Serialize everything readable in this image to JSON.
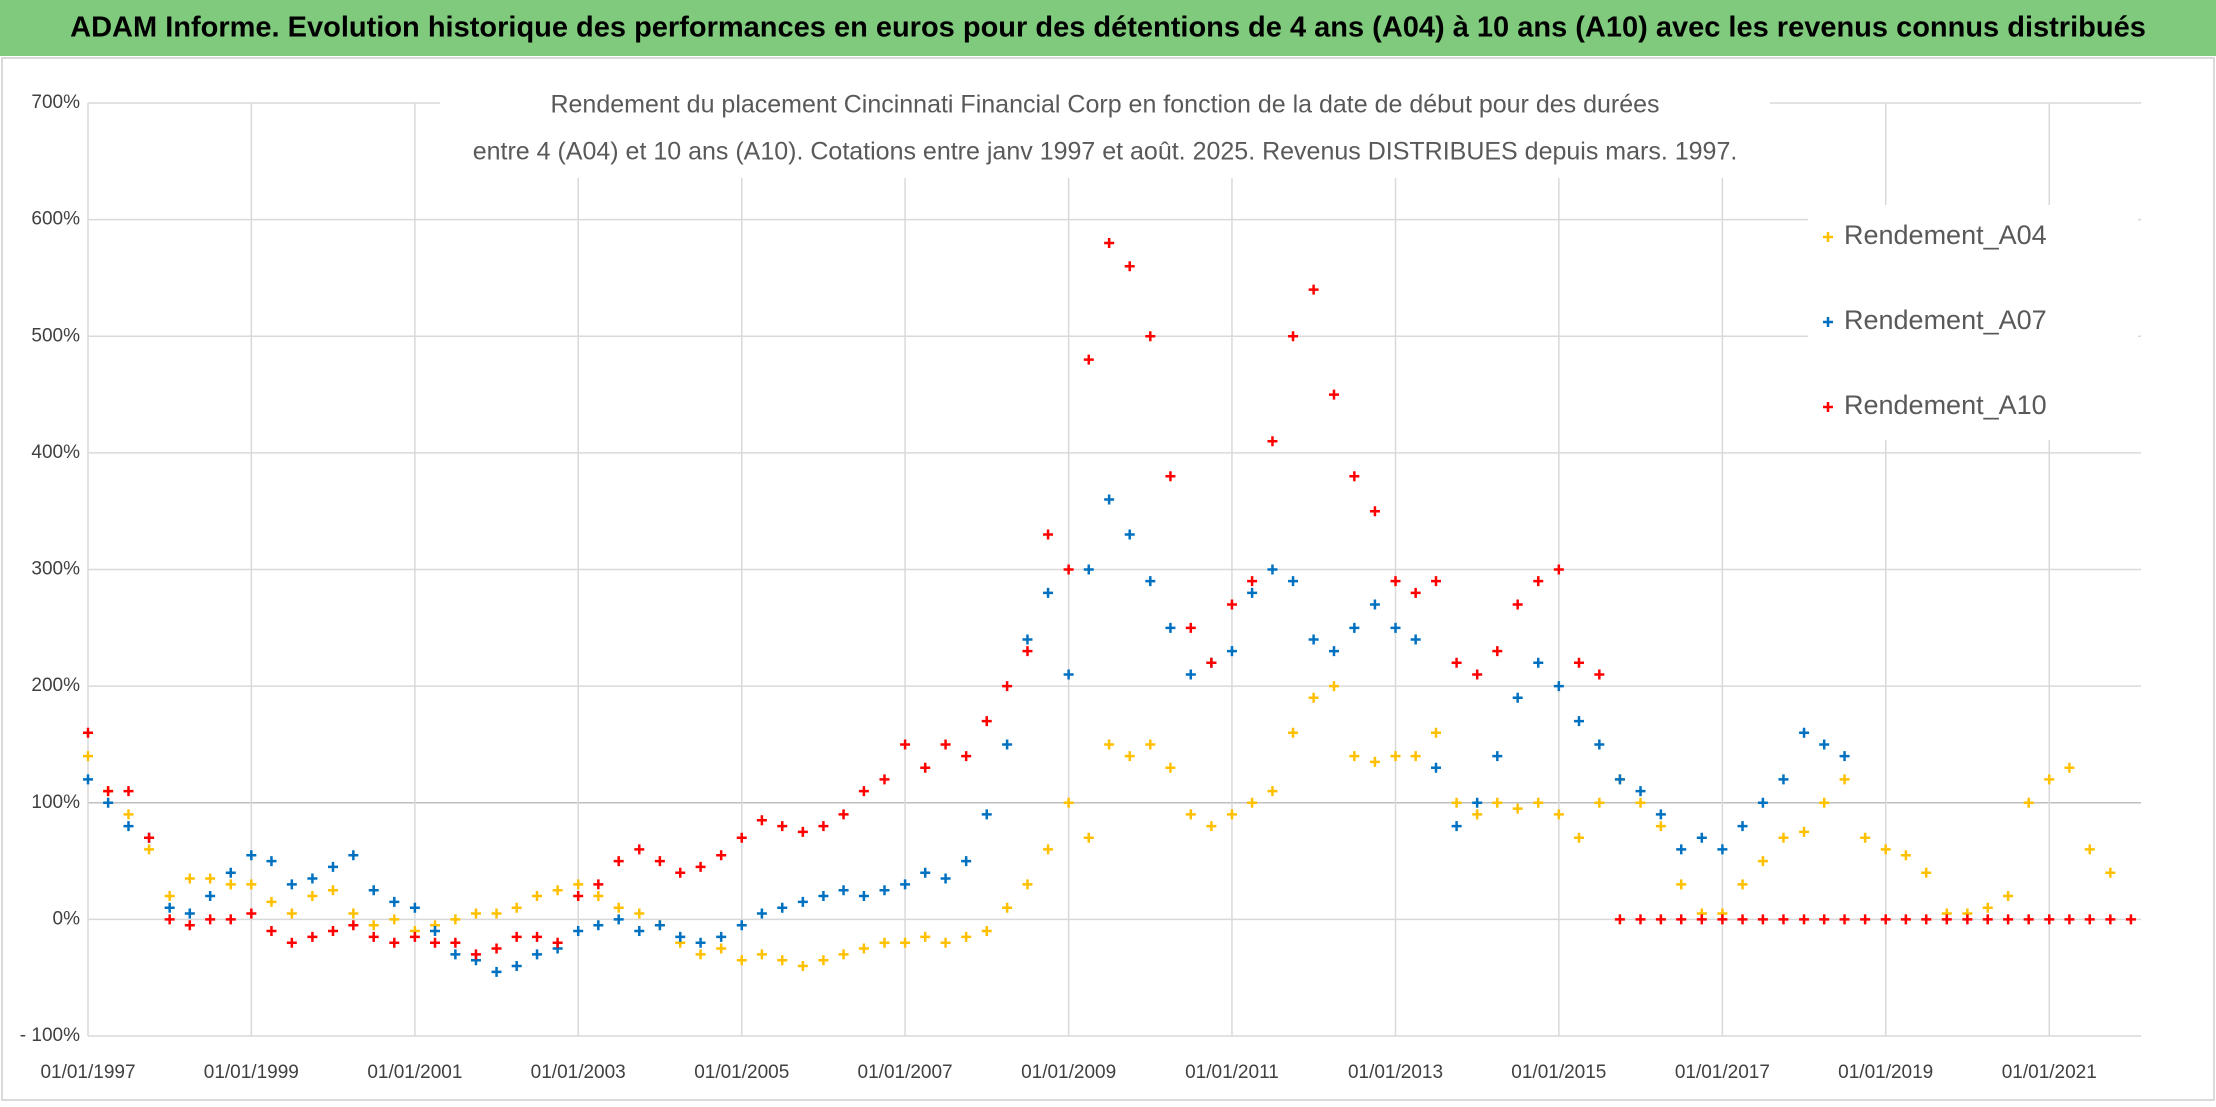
{
  "chart_data": {
    "type": "scatter",
    "header": "ADAM Informe. Evolution historique des performances en euros pour des détentions de 4 ans (A04) à 10 ans (A10) avec les revenus connus distribués",
    "title": [
      "Rendement du placement Cincinnati Financial Corp en fonction de la date de début pour des durées",
      "entre 4 (A04) et 10 ans (A10). Cotations entre janv 1997 et août. 2025. Revenus DISTRIBUES depuis mars. 1997."
    ],
    "x": [
      "01/01/1997",
      "01/04/1997",
      "01/07/1997",
      "01/10/1997",
      "01/01/1998",
      "01/04/1998",
      "01/07/1998",
      "01/10/1998",
      "01/01/1999",
      "01/04/1999",
      "01/07/1999",
      "01/10/1999",
      "01/01/2000",
      "01/04/2000",
      "01/07/2000",
      "01/10/2000",
      "01/01/2001",
      "01/04/2001",
      "01/07/2001",
      "01/10/2001",
      "01/01/2002",
      "01/04/2002",
      "01/07/2002",
      "01/10/2002",
      "01/01/2003",
      "01/04/2003",
      "01/07/2003",
      "01/10/2003",
      "01/01/2004",
      "01/04/2004",
      "01/07/2004",
      "01/10/2004",
      "01/01/2005",
      "01/04/2005",
      "01/07/2005",
      "01/10/2005",
      "01/01/2006",
      "01/04/2006",
      "01/07/2006",
      "01/10/2006",
      "01/01/2007",
      "01/04/2007",
      "01/07/2007",
      "01/10/2007",
      "01/01/2008",
      "01/04/2008",
      "01/07/2008",
      "01/10/2008",
      "01/01/2009",
      "01/04/2009",
      "01/07/2009",
      "01/10/2009",
      "01/01/2010",
      "01/04/2010",
      "01/07/2010",
      "01/10/2010",
      "01/01/2011",
      "01/04/2011",
      "01/07/2011",
      "01/10/2011",
      "01/01/2012",
      "01/04/2012",
      "01/07/2012",
      "01/10/2012",
      "01/01/2013",
      "01/04/2013",
      "01/07/2013",
      "01/10/2013",
      "01/01/2014",
      "01/04/2014",
      "01/07/2014",
      "01/10/2014",
      "01/01/2015",
      "01/04/2015",
      "01/07/2015",
      "01/10/2015",
      "01/01/2016",
      "01/04/2016",
      "01/07/2016",
      "01/10/2016",
      "01/01/2017",
      "01/04/2017",
      "01/07/2017",
      "01/10/2017",
      "01/01/2018",
      "01/04/2018",
      "01/07/2018",
      "01/10/2018",
      "01/01/2019",
      "01/04/2019",
      "01/07/2019",
      "01/10/2019",
      "01/01/2020",
      "01/04/2020",
      "01/07/2020",
      "01/10/2020",
      "01/01/2021",
      "01/04/2021",
      "01/07/2021",
      "01/10/2021",
      "01/01/2022"
    ],
    "series": [
      {
        "name": "Rendement_A04",
        "color": "#ffc000",
        "values": [
          140,
          110,
          90,
          60,
          20,
          35,
          35,
          30,
          30,
          15,
          5,
          20,
          25,
          5,
          -5,
          0,
          -10,
          -5,
          0,
          5,
          5,
          10,
          20,
          25,
          30,
          20,
          10,
          5,
          -5,
          -20,
          -30,
          -25,
          -35,
          -30,
          -35,
          -40,
          -35,
          -30,
          -25,
          -20,
          -20,
          -15,
          -20,
          -15,
          -10,
          10,
          30,
          60,
          100,
          70,
          150,
          140,
          150,
          130,
          90,
          80,
          90,
          100,
          110,
          160,
          190,
          200,
          140,
          135,
          140,
          140,
          160,
          100,
          90,
          100,
          95,
          100,
          90,
          70,
          100,
          120,
          100,
          80,
          30,
          5,
          5,
          30,
          50,
          70,
          75,
          100,
          120,
          70,
          60,
          55,
          40,
          5,
          5,
          10,
          20,
          100,
          120,
          130,
          60,
          40,
          null
        ]
      },
      {
        "name": "Rendement_A07",
        "color": "#0070c0",
        "values": [
          120,
          100,
          80,
          70,
          10,
          5,
          20,
          40,
          55,
          50,
          30,
          35,
          45,
          55,
          25,
          15,
          10,
          -10,
          -30,
          -35,
          -45,
          -40,
          -30,
          -25,
          -10,
          -5,
          0,
          -10,
          -5,
          -15,
          -20,
          -15,
          -5,
          5,
          10,
          15,
          20,
          25,
          20,
          25,
          30,
          40,
          35,
          50,
          90,
          150,
          240,
          280,
          210,
          300,
          360,
          330,
          290,
          250,
          210,
          220,
          230,
          280,
          300,
          290,
          240,
          230,
          250,
          270,
          250,
          240,
          130,
          80,
          100,
          140,
          190,
          220,
          200,
          170,
          150,
          120,
          110,
          90,
          60,
          70,
          60,
          80,
          100,
          120,
          160,
          150,
          140,
          null,
          null,
          null,
          null,
          null,
          null,
          null,
          null,
          null,
          null,
          null,
          null,
          null,
          null
        ]
      },
      {
        "name": "Rendement_A10",
        "color": "#ff0000",
        "values": [
          160,
          110,
          110,
          70,
          0,
          -5,
          0,
          0,
          5,
          -10,
          -20,
          -15,
          -10,
          -5,
          -15,
          -20,
          -15,
          -20,
          -20,
          -30,
          -25,
          -15,
          -15,
          -20,
          20,
          30,
          50,
          60,
          50,
          40,
          45,
          55,
          70,
          85,
          80,
          75,
          80,
          90,
          110,
          120,
          150,
          130,
          150,
          140,
          170,
          200,
          230,
          330,
          300,
          480,
          580,
          560,
          500,
          380,
          250,
          220,
          270,
          290,
          410,
          500,
          540,
          450,
          380,
          350,
          290,
          280,
          290,
          220,
          210,
          230,
          270,
          290,
          300,
          220,
          210,
          0,
          0,
          0,
          0,
          0,
          0,
          0,
          0,
          0,
          0,
          0,
          0,
          0,
          0,
          0,
          0,
          0,
          0,
          0,
          0,
          0,
          0,
          0,
          0,
          0,
          0
        ]
      }
    ],
    "xlim": [
      "01/01/1997",
      "15/02/2022"
    ],
    "xticks": [
      "01/01/1997",
      "01/01/1999",
      "01/01/2001",
      "01/01/2003",
      "01/01/2005",
      "01/01/2007",
      "01/01/2009",
      "01/01/2011",
      "01/01/2013",
      "01/01/2015",
      "01/01/2017",
      "01/01/2019",
      "01/01/2021"
    ],
    "ylim": [
      -100,
      700
    ],
    "yticks": [
      {
        "value": -100,
        "label": "- 100%"
      },
      {
        "value": 0,
        "label": "0%"
      },
      {
        "value": 100,
        "label": "100%"
      },
      {
        "value": 200,
        "label": "200%"
      },
      {
        "value": 300,
        "label": "300%"
      },
      {
        "value": 400,
        "label": "400%"
      },
      {
        "value": 500,
        "label": "500%"
      },
      {
        "value": 600,
        "label": "600%"
      },
      {
        "value": 700,
        "label": "700%"
      }
    ],
    "grid": true,
    "legend": "top-right"
  }
}
